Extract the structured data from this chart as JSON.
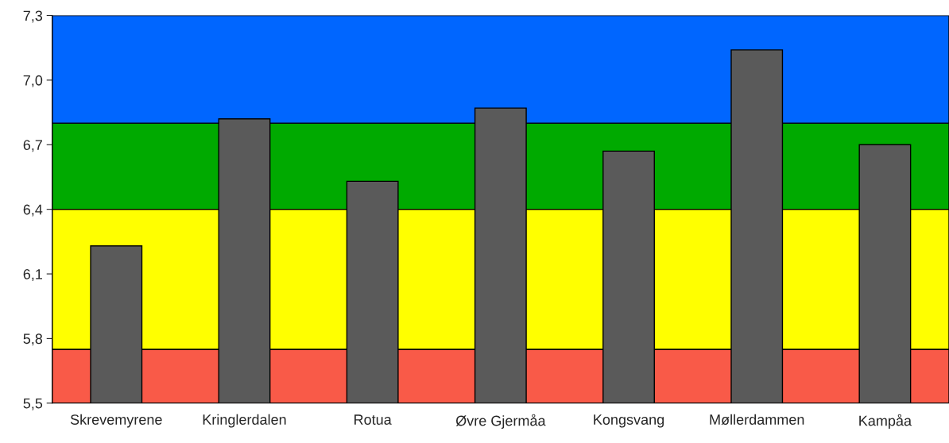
{
  "chart_data": {
    "type": "bar",
    "categories": [
      "Skrevemyrene",
      "Kringlerdalen",
      "Rotua",
      "Øvre Gjermåa",
      "Kongsvang",
      "Møllerdammen",
      "Kampåa"
    ],
    "values": [
      6.23,
      6.82,
      6.53,
      6.87,
      6.67,
      7.14,
      6.7
    ],
    "color": "#5a5a5a",
    "ylim": [
      5.5,
      7.3
    ],
    "yticks": [
      {
        "value": 5.5,
        "label": "5,5"
      },
      {
        "value": 5.8,
        "label": "5,8"
      },
      {
        "value": 6.1,
        "label": "6,1"
      },
      {
        "value": 6.4,
        "label": "6,4"
      },
      {
        "value": 6.7,
        "label": "6,7"
      },
      {
        "value": 7.0,
        "label": "7,0"
      },
      {
        "value": 7.3,
        "label": "7,3"
      }
    ],
    "bands": [
      {
        "axis": "y",
        "from": 5.5,
        "to": 5.75,
        "color": "#f95a48"
      },
      {
        "axis": "y",
        "from": 5.75,
        "to": 6.4,
        "color": "#ffff00"
      },
      {
        "axis": "y",
        "from": 6.4,
        "to": 6.8,
        "color": "#00aa00"
      },
      {
        "axis": "y",
        "from": 6.8,
        "to": 7.3,
        "color": "#0066ff"
      }
    ]
  }
}
